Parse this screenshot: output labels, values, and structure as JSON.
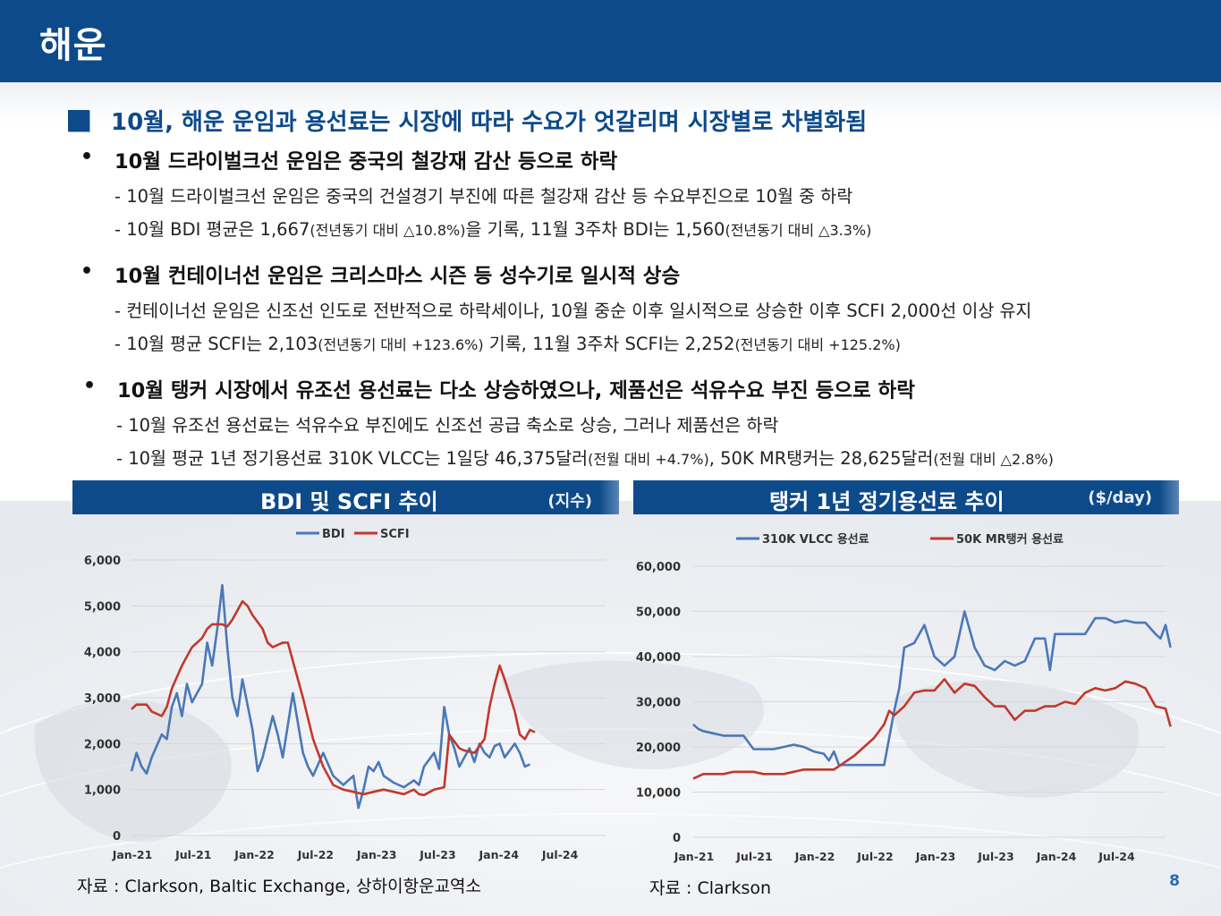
{
  "header": {
    "title": "해운"
  },
  "headline": "10월, 해운 운임과 용선료는 시장에 따라 수요가 엇갈리며 시장별로 차별화됨",
  "sections": [
    {
      "bullet": "10월 드라이벌크선 운임은 중국의 철강재 감산 등으로 하락",
      "lines": [
        {
          "main": "- 10월 드라이벌크선 운임은 중국의 건설경기 부진에 따른 철강재 감산 등 수요부진으로 10월 중 하락"
        },
        {
          "a": "- 10월 BDI 평균은 1,667",
          "b": "(전년동기 대비 △10.8%)",
          "c": "을 기록, 11월 3주차 BDI는 1,560",
          "d": "(전년동기 대비 △3.3%)"
        }
      ]
    },
    {
      "bullet": "10월 컨테이너선 운임은 크리스마스 시즌 등 성수기로 일시적 상승",
      "lines": [
        {
          "main": "- 컨테이너선 운임은 신조선 인도로 전반적으로 하락세이나, 10월 중순 이후 일시적으로 상승한 이후 SCFI 2,000선 이상 유지"
        },
        {
          "a": "- 10월 평균 SCFI는 2,103",
          "b": "(전년동기 대비 +123.6%)",
          "c": " 기록, 11월 3주차 SCFI는 2,252",
          "d": "(전년동기 대비 +125.2%)"
        }
      ]
    },
    {
      "bullet": "10월 탱커 시장에서 유조선 용선료는 다소 상승하였으나, 제품선은 석유수요 부진 등으로 하락",
      "lines": [
        {
          "main": "- 10월 유조선 용선료는 석유수요 부진에도 신조선 공급 축소로 상승, 그러나 제품선은 하락"
        },
        {
          "a": "- 10월 평균 1년 정기용선료 310K VLCC는 1일당 46,375달러",
          "b": "(전월 대비 +4.7%)",
          "c": ", 50K MR탱커는 28,625달러",
          "d": "(전월 대비 △2.8%)"
        }
      ]
    }
  ],
  "panels": {
    "left": {
      "title": "BDI 및 SCFI 추이",
      "unit": "(지수)",
      "source": "자료 : Clarkson, Baltic Exchange, 상하이항운교역소"
    },
    "right": {
      "title": "탱커 1년 정기용선료 추이",
      "unit": "($/day)",
      "source": "자료 : Clarkson"
    }
  },
  "page_number": "8",
  "colors": {
    "brand": "#0d4a8a",
    "blue_series": "#4a78b8",
    "red_series": "#c0392b"
  },
  "chart_data": [
    {
      "type": "line",
      "title": "BDI 및 SCFI 추이",
      "ylabel": "(지수)",
      "ylim": [
        0,
        6000
      ],
      "yticks": [
        "0",
        "1,000",
        "2,000",
        "3,000",
        "4,000",
        "5,000",
        "6,000"
      ],
      "xticks": [
        "Jan-21",
        "Jul-21",
        "Jan-22",
        "Jul-22",
        "Jan-23",
        "Jul-23",
        "Jan-24",
        "Jul-24"
      ],
      "xlim": [
        0,
        47
      ],
      "legend": "top-center",
      "grid": true,
      "series": [
        {
          "name": "BDI",
          "color": "#4a78b8",
          "points": [
            [
              0,
              1400
            ],
            [
              0.5,
              1800
            ],
            [
              1,
              1500
            ],
            [
              1.5,
              1350
            ],
            [
              2,
              1700
            ],
            [
              3,
              2200
            ],
            [
              3.5,
              2100
            ],
            [
              4,
              2800
            ],
            [
              4.5,
              3100
            ],
            [
              5,
              2600
            ],
            [
              5.5,
              3300
            ],
            [
              6,
              2900
            ],
            [
              7,
              3300
            ],
            [
              7.5,
              4200
            ],
            [
              8,
              3700
            ],
            [
              8.5,
              4500
            ],
            [
              9,
              5450
            ],
            [
              9.5,
              4100
            ],
            [
              10,
              3000
            ],
            [
              10.5,
              2600
            ],
            [
              11,
              3400
            ],
            [
              12,
              2300
            ],
            [
              12.5,
              1400
            ],
            [
              13,
              1700
            ],
            [
              14,
              2600
            ],
            [
              14.5,
              2200
            ],
            [
              15,
              1700
            ],
            [
              16,
              3100
            ],
            [
              17,
              1800
            ],
            [
              17.5,
              1500
            ],
            [
              18,
              1300
            ],
            [
              19,
              1800
            ],
            [
              20,
              1300
            ],
            [
              21,
              1100
            ],
            [
              22,
              1300
            ],
            [
              22.5,
              600
            ],
            [
              23,
              1000
            ],
            [
              23.5,
              1500
            ],
            [
              24,
              1400
            ],
            [
              24.5,
              1600
            ],
            [
              25,
              1300
            ],
            [
              26,
              1150
            ],
            [
              27,
              1050
            ],
            [
              28,
              1200
            ],
            [
              28.5,
              1100
            ],
            [
              29,
              1500
            ],
            [
              30,
              1800
            ],
            [
              30.5,
              1450
            ],
            [
              31,
              2800
            ],
            [
              31.5,
              2200
            ],
            [
              32,
              1900
            ],
            [
              32.5,
              1500
            ],
            [
              33,
              1700
            ],
            [
              33.5,
              1900
            ],
            [
              34,
              1600
            ],
            [
              34.5,
              2000
            ],
            [
              35,
              1800
            ],
            [
              35.5,
              1700
            ],
            [
              36,
              1950
            ],
            [
              36.5,
              2000
            ],
            [
              37,
              1700
            ],
            [
              38,
              2000
            ],
            [
              38.5,
              1800
            ],
            [
              39,
              1500
            ],
            [
              39.5,
              1550
            ]
          ]
        },
        {
          "name": "SCFI",
          "color": "#c0392b",
          "points": [
            [
              0,
              2750
            ],
            [
              0.5,
              2850
            ],
            [
              1.5,
              2850
            ],
            [
              2,
              2700
            ],
            [
              3,
              2600
            ],
            [
              3.5,
              2800
            ],
            [
              4,
              3200
            ],
            [
              5,
              3700
            ],
            [
              5.5,
              3900
            ],
            [
              6,
              4100
            ],
            [
              7,
              4300
            ],
            [
              7.5,
              4500
            ],
            [
              8,
              4600
            ],
            [
              9,
              4600
            ],
            [
              9.5,
              4550
            ],
            [
              10,
              4700
            ],
            [
              10.5,
              4900
            ],
            [
              11,
              5100
            ],
            [
              11.5,
              5000
            ],
            [
              12,
              4800
            ],
            [
              13,
              4500
            ],
            [
              13.5,
              4200
            ],
            [
              14,
              4100
            ],
            [
              15,
              4200
            ],
            [
              15.5,
              4200
            ],
            [
              16,
              3800
            ],
            [
              17,
              3000
            ],
            [
              18,
              2100
            ],
            [
              19,
              1500
            ],
            [
              20,
              1100
            ],
            [
              21,
              1000
            ],
            [
              22,
              950
            ],
            [
              23,
              900
            ],
            [
              24,
              950
            ],
            [
              25,
              1000
            ],
            [
              26,
              950
            ],
            [
              27,
              900
            ],
            [
              28,
              1000
            ],
            [
              28.5,
              900
            ],
            [
              29,
              880
            ],
            [
              30,
              1000
            ],
            [
              31,
              1050
            ],
            [
              31.5,
              2200
            ],
            [
              32.5,
              1900
            ],
            [
              33,
              1850
            ],
            [
              34,
              1800
            ],
            [
              35,
              2100
            ],
            [
              35.5,
              2800
            ],
            [
              36,
              3300
            ],
            [
              36.5,
              3700
            ],
            [
              37,
              3400
            ],
            [
              38,
              2700
            ],
            [
              38.5,
              2200
            ],
            [
              39,
              2100
            ],
            [
              39.5,
              2300
            ],
            [
              40,
              2250
            ]
          ]
        }
      ]
    },
    {
      "type": "line",
      "title": "탱커 1년 정기용선료 추이",
      "ylabel": "($/day)",
      "ylim": [
        0,
        60000
      ],
      "yticks": [
        "0",
        "10,000",
        "20,000",
        "30,000",
        "40,000",
        "50,000",
        "60,000"
      ],
      "xticks": [
        "Jan-21",
        "Jul-21",
        "Jan-22",
        "Jul-22",
        "Jan-23",
        "Jul-23",
        "Jan-24",
        "Jul-24"
      ],
      "xlim": [
        0,
        47
      ],
      "legend": "top",
      "grid": true,
      "series": [
        {
          "name": "310K VLCC 용선료",
          "color": "#4a78b8",
          "points": [
            [
              0,
              25000
            ],
            [
              0.5,
              24000
            ],
            [
              1,
              23500
            ],
            [
              2,
              23000
            ],
            [
              3,
              22500
            ],
            [
              4,
              22500
            ],
            [
              5,
              22500
            ],
            [
              5.5,
              21000
            ],
            [
              6,
              19500
            ],
            [
              7,
              19500
            ],
            [
              8,
              19500
            ],
            [
              9,
              20000
            ],
            [
              10,
              20500
            ],
            [
              11,
              20000
            ],
            [
              12,
              19000
            ],
            [
              13,
              18500
            ],
            [
              13.5,
              17000
            ],
            [
              14,
              19000
            ],
            [
              14.5,
              16000
            ],
            [
              15,
              16000
            ],
            [
              16,
              16000
            ],
            [
              17,
              16000
            ],
            [
              18,
              16000
            ],
            [
              19,
              16000
            ],
            [
              20,
              28000
            ],
            [
              20.5,
              33000
            ],
            [
              21,
              42000
            ],
            [
              22,
              43000
            ],
            [
              23,
              47000
            ],
            [
              24,
              40000
            ],
            [
              25,
              38000
            ],
            [
              26,
              40000
            ],
            [
              26.5,
              45000
            ],
            [
              27,
              50000
            ],
            [
              28,
              42000
            ],
            [
              29,
              38000
            ],
            [
              30,
              37000
            ],
            [
              31,
              39000
            ],
            [
              32,
              38000
            ],
            [
              33,
              39000
            ],
            [
              34,
              44000
            ],
            [
              35,
              44000
            ],
            [
              35.5,
              37000
            ],
            [
              36,
              45000
            ],
            [
              37,
              45000
            ],
            [
              38,
              45000
            ],
            [
              39,
              45000
            ],
            [
              40,
              48500
            ],
            [
              41,
              48500
            ],
            [
              42,
              47500
            ],
            [
              43,
              48000
            ],
            [
              44,
              47500
            ],
            [
              45,
              47500
            ],
            [
              46,
              45000
            ],
            [
              46.5,
              44000
            ],
            [
              47,
              47000
            ],
            [
              47.5,
              42000
            ]
          ]
        },
        {
          "name": "50K MR탱커 용선료",
          "color": "#c0392b",
          "points": [
            [
              0,
              13000
            ],
            [
              1,
              14000
            ],
            [
              2,
              14000
            ],
            [
              3,
              14000
            ],
            [
              4,
              14500
            ],
            [
              5,
              14500
            ],
            [
              6,
              14500
            ],
            [
              7,
              14000
            ],
            [
              8,
              14000
            ],
            [
              9,
              14000
            ],
            [
              10,
              14500
            ],
            [
              11,
              15000
            ],
            [
              12,
              15000
            ],
            [
              13,
              15000
            ],
            [
              14,
              15000
            ],
            [
              15,
              16500
            ],
            [
              16,
              18000
            ],
            [
              17,
              20000
            ],
            [
              18,
              22000
            ],
            [
              19,
              25000
            ],
            [
              19.5,
              28000
            ],
            [
              20,
              27000
            ],
            [
              21,
              29000
            ],
            [
              22,
              32000
            ],
            [
              23,
              32500
            ],
            [
              24,
              32500
            ],
            [
              25,
              35000
            ],
            [
              26,
              32000
            ],
            [
              27,
              34000
            ],
            [
              28,
              33500
            ],
            [
              29,
              31000
            ],
            [
              30,
              29000
            ],
            [
              31,
              29000
            ],
            [
              32,
              26000
            ],
            [
              33,
              28000
            ],
            [
              34,
              28000
            ],
            [
              35,
              29000
            ],
            [
              36,
              29000
            ],
            [
              37,
              30000
            ],
            [
              38,
              29500
            ],
            [
              39,
              32000
            ],
            [
              40,
              33000
            ],
            [
              41,
              32500
            ],
            [
              42,
              33000
            ],
            [
              43,
              34500
            ],
            [
              44,
              34000
            ],
            [
              45,
              33000
            ],
            [
              46,
              29000
            ],
            [
              47,
              28500
            ],
            [
              47.5,
              24500
            ]
          ]
        }
      ]
    }
  ]
}
